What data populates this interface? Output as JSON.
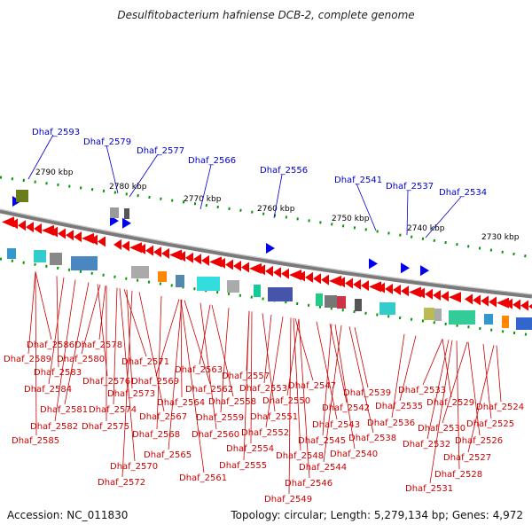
{
  "title": "Desulfitobacterium hafniense DCB-2, complete genome",
  "footer": {
    "accession": "Accession: NC_011830",
    "summary": "Topology: circular; Length: 5,279,134 bp; Genes: 4,972"
  },
  "colors": {
    "backbone": "#888888",
    "forward_gene": "#0000ee",
    "reverse_gene": "#ee0000",
    "gene_label_top": "#0000cc",
    "gene_label_bottom": "#cc0000",
    "tick": "#008800",
    "kbp_label": "#000000"
  },
  "kbp_labels": [
    "2790 kbp",
    "2780 kbp",
    "2770 kbp",
    "2760 kbp",
    "2750 kbp",
    "2740 kbp",
    "2730 kbp"
  ],
  "top_genes": [
    "Dhaf_2593",
    "Dhaf_2579",
    "Dhaf_2577",
    "Dhaf_2566",
    "Dhaf_2556",
    "Dhaf_2541",
    "Dhaf_2537",
    "Dhaf_2534"
  ],
  "bottom_genes": [
    "Dhaf_2586",
    "Dhaf_2578",
    "Dhaf_2589",
    "Dhaf_2580",
    "Dhaf_2583",
    "Dhaf_2571",
    "Dhaf_2563",
    "Dhaf_2576",
    "Dhaf_2569",
    "Dhaf_2557",
    "Dhaf_2547",
    "Dhaf_2584",
    "Dhaf_2573",
    "Dhaf_2562",
    "Dhaf_2553",
    "Dhaf_2539",
    "Dhaf_2533",
    "Dhaf_2564",
    "Dhaf_2558",
    "Dhaf_2550",
    "Dhaf_2529",
    "Dhaf_2581",
    "Dhaf_2574",
    "Dhaf_2542",
    "Dhaf_2535",
    "Dhaf_2524",
    "Dhaf_2567",
    "Dhaf_2559",
    "Dhaf_2551",
    "Dhaf_2582",
    "Dhaf_2575",
    "Dhaf_2543",
    "Dhaf_2536",
    "Dhaf_2525",
    "Dhaf_2530",
    "Dhaf_2568",
    "Dhaf_2560",
    "Dhaf_2552",
    "Dhaf_2585",
    "Dhaf_2538",
    "Dhaf_2545",
    "Dhaf_2526",
    "Dhaf_2532",
    "Dhaf_2554",
    "Dhaf_2540",
    "Dhaf_2565",
    "Dhaf_2548",
    "Dhaf_2527",
    "Dhaf_2555",
    "Dhaf_2570",
    "Dhaf_2544",
    "Dhaf_2528",
    "Dhaf_2561",
    "Dhaf_2572",
    "Dhaf_2546",
    "Dhaf_2531",
    "Dhaf_2549"
  ]
}
